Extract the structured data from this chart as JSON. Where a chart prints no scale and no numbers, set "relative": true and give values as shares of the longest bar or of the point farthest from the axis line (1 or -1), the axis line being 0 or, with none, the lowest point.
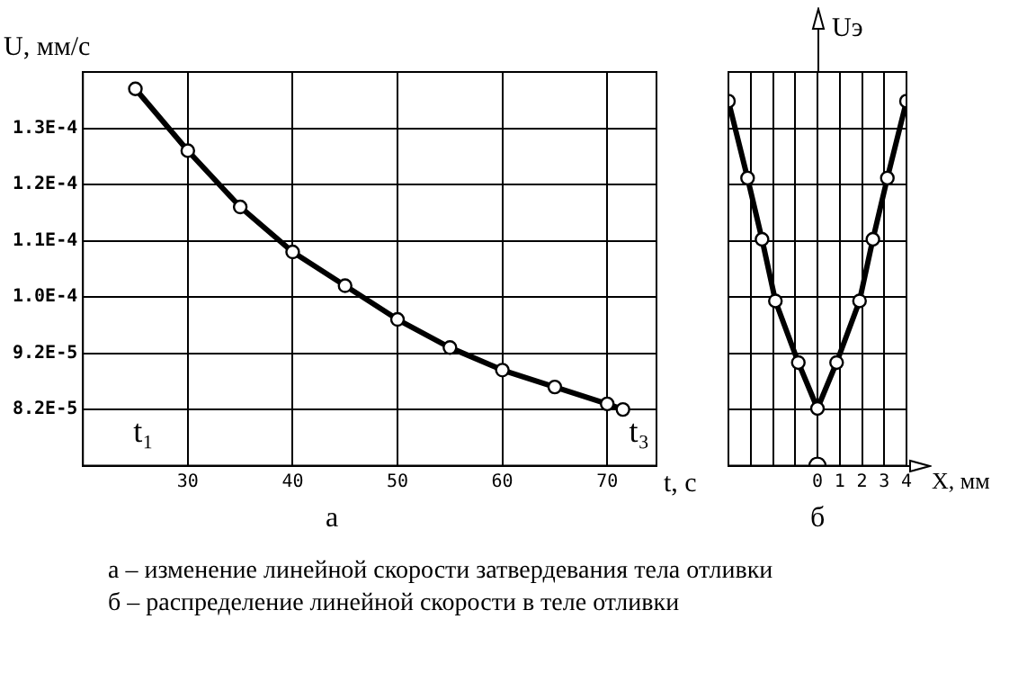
{
  "chart_data": [
    {
      "type": "line",
      "title": "а",
      "xlabel": "t, c",
      "ylabel": "U, мм/с",
      "xlim": [
        20,
        74.7
      ],
      "xticks": [
        30,
        40,
        50,
        60,
        70
      ],
      "ylim": [
        7.2e-05,
        0.000142
      ],
      "yticks": [
        {
          "value": 0.000132,
          "label": "1.3E-4"
        },
        {
          "value": 0.000122,
          "label": "1.2E-4"
        },
        {
          "value": 0.000112,
          "label": "1.1E-4"
        },
        {
          "value": 0.000102,
          "label": "1.0E-4"
        },
        {
          "value": 9.2e-05,
          "label": "9.2E-5"
        },
        {
          "value": 8.2e-05,
          "label": "8.2E-5"
        }
      ],
      "grid": true,
      "marker": "circle",
      "line_style": "solid",
      "series": [
        {
          "color": "#000000",
          "x": [
            25,
            30,
            35,
            40,
            45,
            50,
            55,
            60,
            65,
            70,
            71.5
          ],
          "values": [
            0.000139,
            0.000128,
            0.000118,
            0.00011,
            0.000104,
            9.8e-05,
            9.3e-05,
            8.9e-05,
            8.6e-05,
            8.3e-05,
            8.2e-05
          ]
        }
      ],
      "annotations": [
        "t₁",
        "t₃"
      ]
    },
    {
      "type": "line",
      "title": "б",
      "xlabel": "X, мм",
      "ylabel": "Uэ",
      "relative": true,
      "xlim": [
        -4,
        4
      ],
      "xticks": [
        {
          "value": -4,
          "label": null
        },
        {
          "value": -3,
          "label": null
        },
        {
          "value": -2,
          "label": null
        },
        {
          "value": -1,
          "label": null
        },
        0,
        1,
        2,
        3,
        4
      ],
      "grid": true,
      "marker": "circle",
      "line_style": "solid",
      "series": [
        {
          "color": "#000000",
          "x": [
            -4,
            -3.14,
            -2.49,
            -1.89,
            -0.86,
            0,
            0.86,
            1.89,
            2.49,
            3.14,
            4
          ],
          "values": [
            1,
            0.789,
            0.621,
            0.452,
            0.283,
            0.157,
            0.283,
            0.452,
            0.621,
            0.789,
            1
          ]
        },
        {
          "type": "scatter",
          "color": "#000000",
          "x": [
            0
          ],
          "values": [
            0
          ]
        }
      ]
    },
    {
      "type": "other",
      "annotations": [
        "а – изменение линейной скорости затвердевания тела отливки",
        "б – распределение линейной скорости в теле отливки"
      ]
    }
  ]
}
